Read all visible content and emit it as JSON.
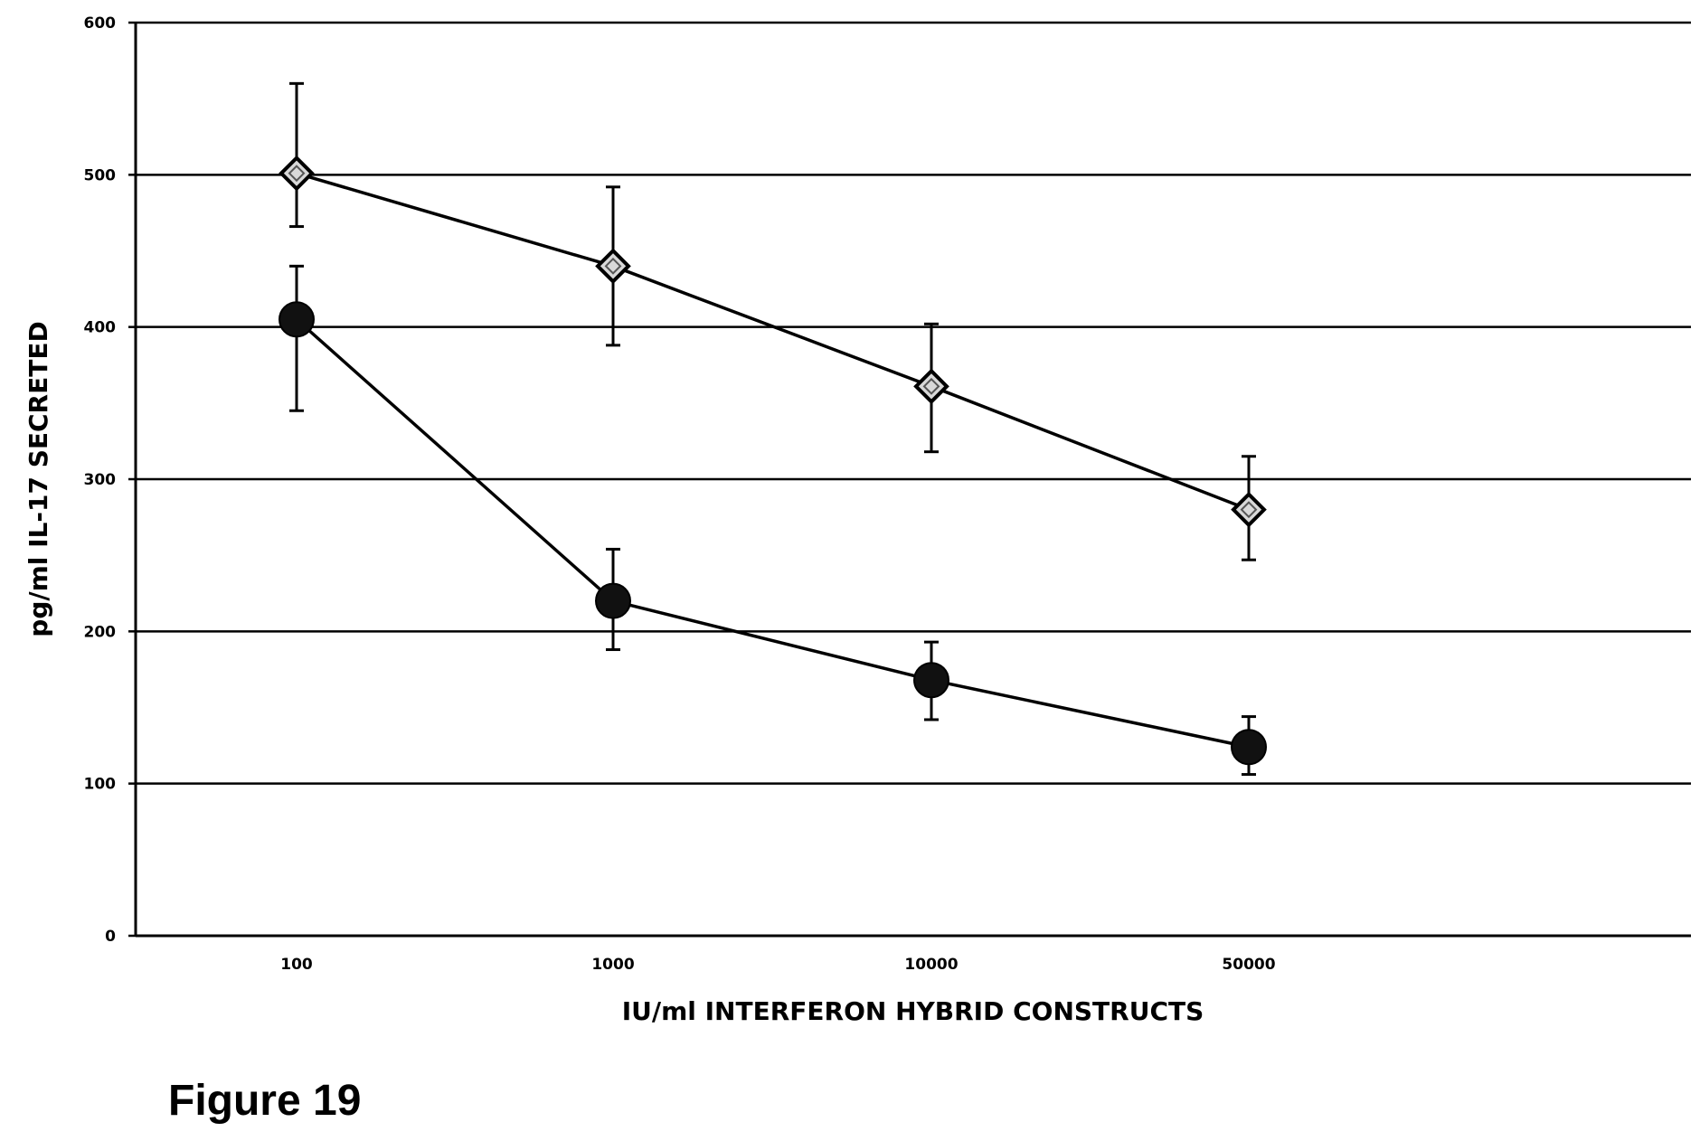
{
  "chart_data": {
    "type": "line",
    "title": "",
    "xlabel": "IU/ml INTERFERON HYBRID CONSTRUCTS",
    "ylabel": "pg/ml IL-17 SECRETED",
    "categories": [
      "100",
      "1000",
      "10000",
      "50000"
    ],
    "ylim": [
      0,
      600
    ],
    "yticks": [
      0,
      100,
      200,
      300,
      400,
      500,
      600
    ],
    "grid": true,
    "legend": "none",
    "series": [
      {
        "marker": "diamond",
        "values": [
          501,
          440,
          361,
          280
        ],
        "error_low": [
          466,
          388,
          318,
          247
        ],
        "error_high": [
          560,
          492,
          402,
          315
        ]
      },
      {
        "marker": "circle",
        "values": [
          405,
          220,
          168,
          124
        ],
        "error_low": [
          345,
          188,
          142,
          106
        ],
        "error_high": [
          440,
          254,
          193,
          144
        ]
      }
    ]
  },
  "figure_caption": "Figure 19",
  "colors": {
    "line": "#000000",
    "grid": "#000000",
    "background": "#ffffff"
  }
}
